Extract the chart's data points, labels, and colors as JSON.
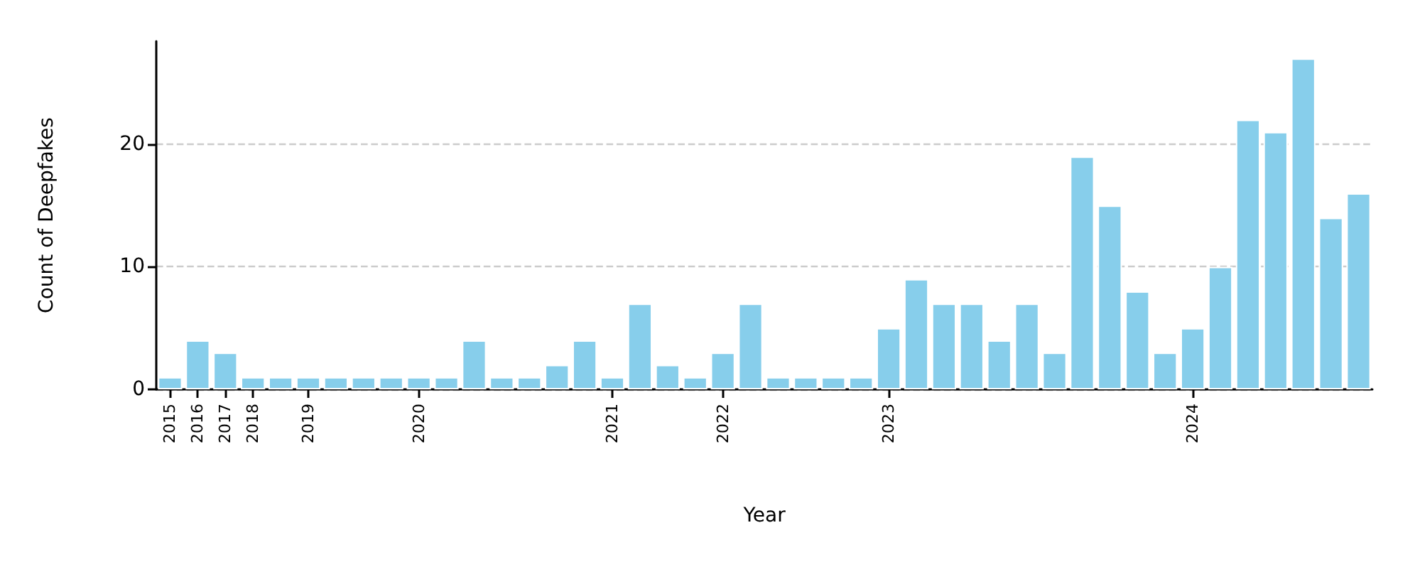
{
  "chart_data": {
    "type": "bar",
    "xlabel": "Year",
    "ylabel": "Count of Deepfakes",
    "categories": [
      "2015",
      "2016",
      "2017",
      "2018",
      null,
      "2019",
      null,
      null,
      null,
      "2020",
      null,
      null,
      null,
      null,
      null,
      null,
      "2021",
      null,
      null,
      null,
      "2022",
      null,
      null,
      null,
      null,
      null,
      "2023",
      null,
      null,
      null,
      null,
      null,
      null,
      null,
      null,
      null,
      null,
      "2024",
      null,
      null,
      null,
      null,
      null,
      null
    ],
    "values": [
      1,
      4,
      3,
      1,
      1,
      1,
      1,
      1,
      1,
      1,
      1,
      4,
      1,
      1,
      2,
      4,
      1,
      7,
      2,
      1,
      3,
      7,
      1,
      1,
      1,
      1,
      5,
      9,
      7,
      7,
      4,
      7,
      3,
      19,
      15,
      8,
      3,
      5,
      10,
      22,
      21,
      27,
      14,
      16
    ],
    "color": "#87ceeb",
    "ylim": [
      0,
      28.4
    ],
    "yticks": [
      0,
      10,
      20
    ],
    "grid": "y",
    "line_style": "dashed"
  }
}
